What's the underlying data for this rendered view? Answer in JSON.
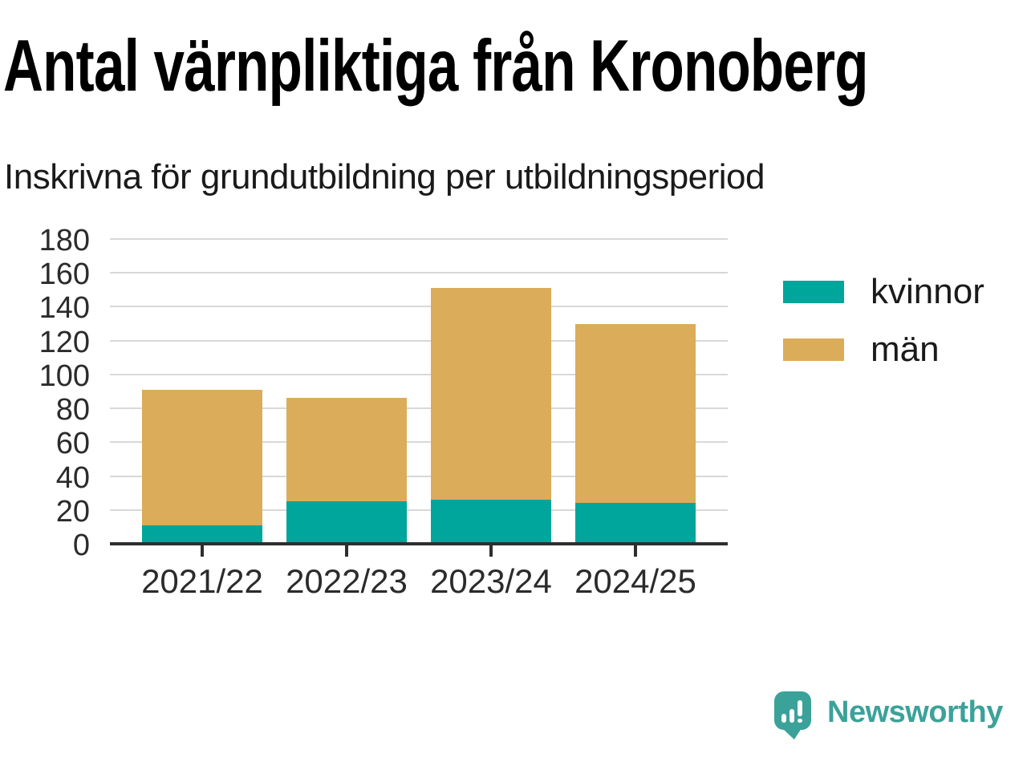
{
  "header": {
    "title": "Antal värnpliktiga från Kronoberg",
    "subtitle": "Inskrivna för grundutbildning per utbildningsperiod"
  },
  "chart_data": {
    "type": "bar",
    "stacked": true,
    "title": "Antal värnpliktiga från Kronoberg",
    "subtitle": "Inskrivna för grundutbildning per utbildningsperiod",
    "categories": [
      "2021/22",
      "2022/23",
      "2023/24",
      "2024/25"
    ],
    "series": [
      {
        "name": "kvinnor",
        "color": "#00A59B",
        "values": [
          11,
          25,
          26,
          24
        ]
      },
      {
        "name": "män",
        "color": "#DBAC59",
        "values": [
          80,
          61,
          125,
          106
        ]
      }
    ],
    "stack_totals": [
      91,
      86,
      151,
      130
    ],
    "ylim": [
      0,
      180
    ],
    "yticks": [
      0,
      20,
      40,
      60,
      80,
      100,
      120,
      140,
      160,
      180
    ],
    "xlabel": "",
    "ylabel": "",
    "grid": "horizontal",
    "legend_position": "right",
    "grid_color": "#D8D8D8",
    "axis_color": "#2E2E2E",
    "tick_label_color": "#2b2b2b"
  },
  "branding": {
    "logo_text": "Newsworthy",
    "logo_color": "#3BA29A",
    "logo_icon": "speech-bubble-bar-chart-icon"
  }
}
